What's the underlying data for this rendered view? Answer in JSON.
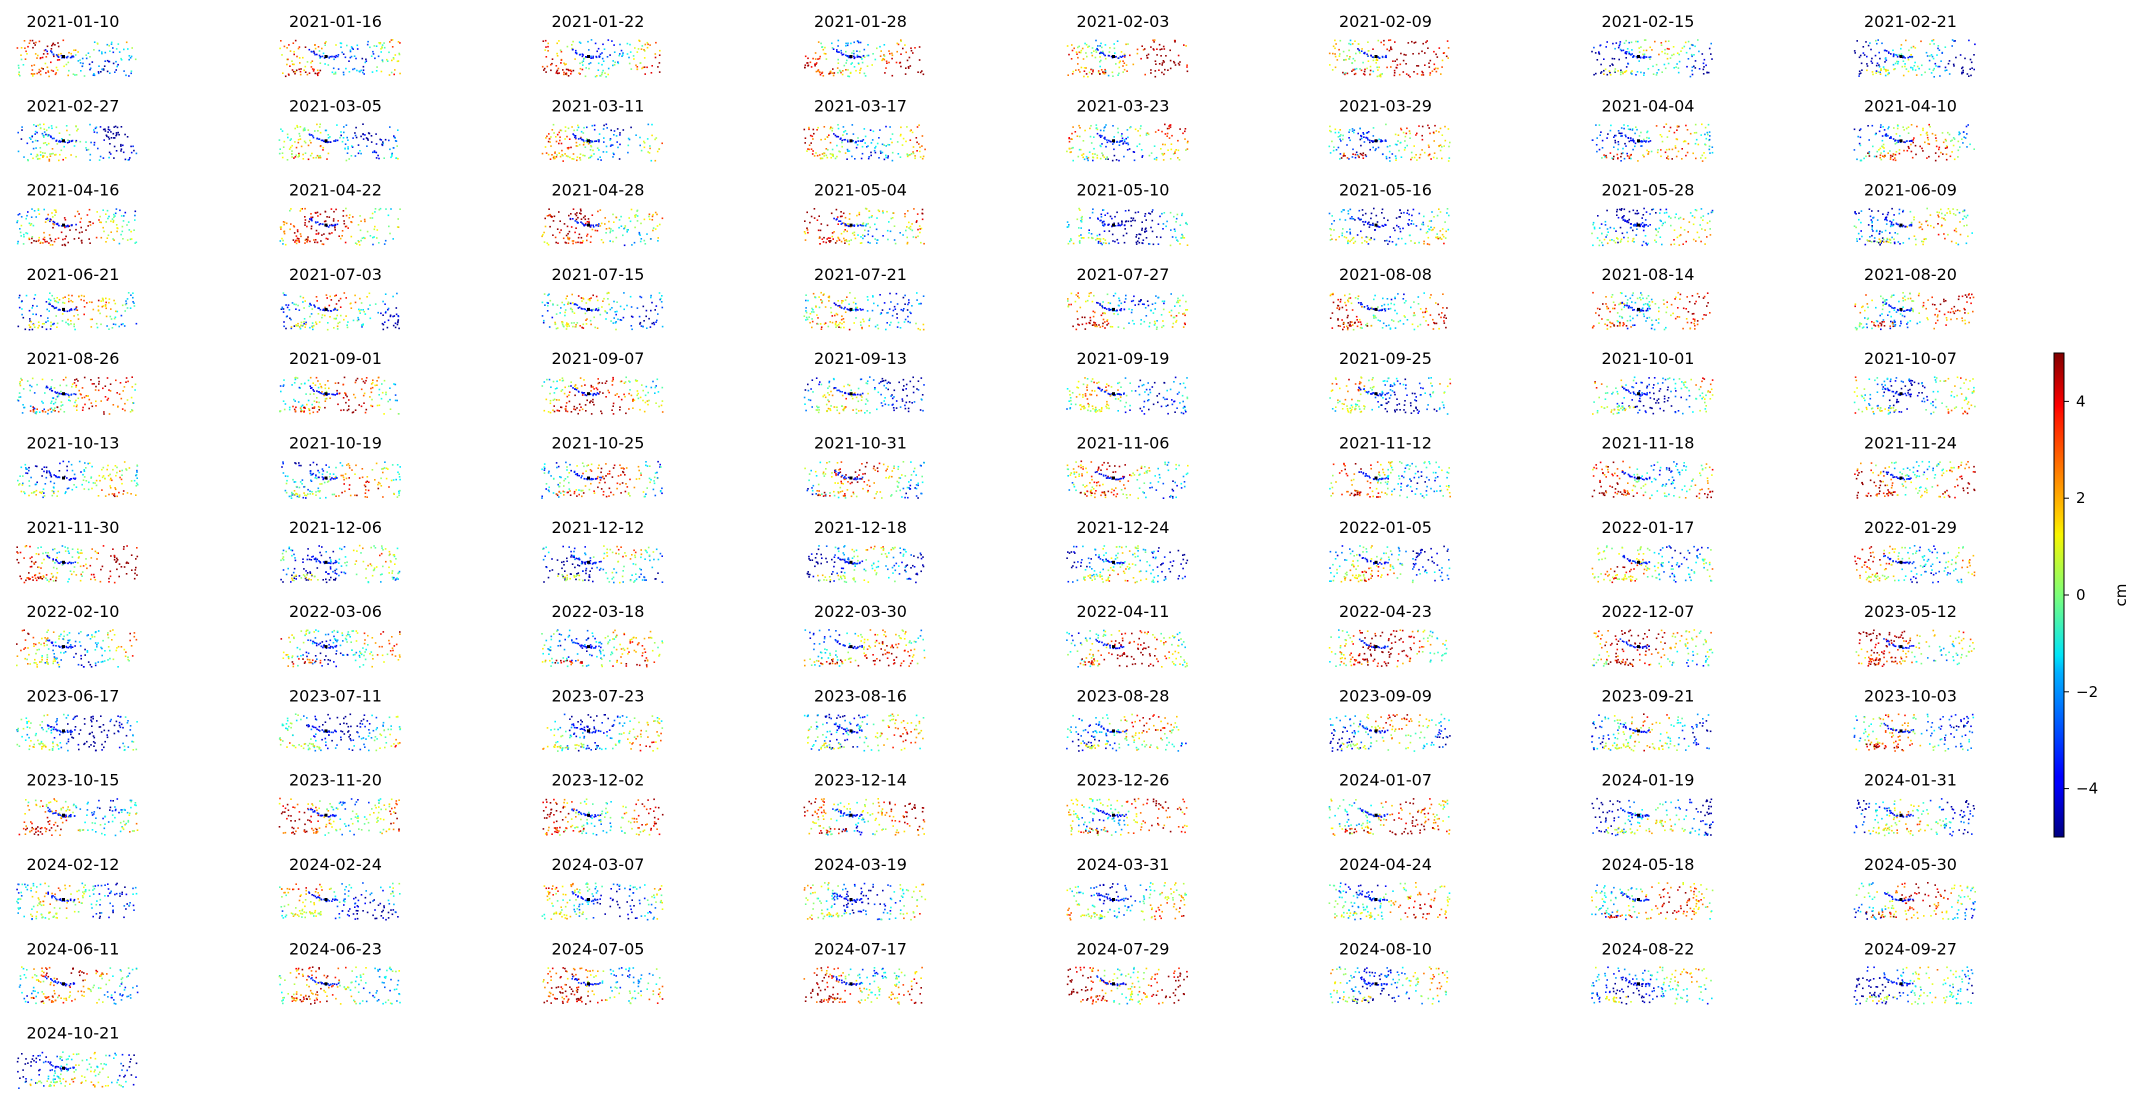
{
  "chart_data": {
    "type": "scatter",
    "panel_kind": "small-multiples-map",
    "columns": 8,
    "panel_titles": [
      "2021-01-10",
      "2021-01-16",
      "2021-01-22",
      "2021-01-28",
      "2021-02-03",
      "2021-02-09",
      "2021-02-15",
      "2021-02-21",
      "2021-02-27",
      "2021-03-05",
      "2021-03-11",
      "2021-03-17",
      "2021-03-23",
      "2021-03-29",
      "2021-04-04",
      "2021-04-10",
      "2021-04-16",
      "2021-04-22",
      "2021-04-28",
      "2021-05-04",
      "2021-05-10",
      "2021-05-16",
      "2021-05-28",
      "2021-06-09",
      "2021-06-21",
      "2021-07-03",
      "2021-07-15",
      "2021-07-21",
      "2021-07-27",
      "2021-08-08",
      "2021-08-14",
      "2021-08-20",
      "2021-08-26",
      "2021-09-01",
      "2021-09-07",
      "2021-09-13",
      "2021-09-19",
      "2021-09-25",
      "2021-10-01",
      "2021-10-07",
      "2021-10-13",
      "2021-10-19",
      "2021-10-25",
      "2021-10-31",
      "2021-11-06",
      "2021-11-12",
      "2021-11-18",
      "2021-11-24",
      "2021-11-30",
      "2021-12-06",
      "2021-12-12",
      "2021-12-18",
      "2021-12-24",
      "2022-01-05",
      "2022-01-17",
      "2022-01-29",
      "2022-02-10",
      "2022-03-06",
      "2022-03-18",
      "2022-03-30",
      "2022-04-11",
      "2022-04-23",
      "2022-12-07",
      "2023-05-12",
      "2023-06-17",
      "2023-07-11",
      "2023-07-23",
      "2023-08-16",
      "2023-08-28",
      "2023-09-09",
      "2023-09-21",
      "2023-10-03",
      "2023-10-15",
      "2023-11-20",
      "2023-12-02",
      "2023-12-14",
      "2023-12-26",
      "2024-01-07",
      "2024-01-19",
      "2024-01-31",
      "2024-02-12",
      "2024-02-24",
      "2024-03-07",
      "2024-03-19",
      "2024-03-31",
      "2024-04-24",
      "2024-05-18",
      "2024-05-30",
      "2024-06-11",
      "2024-06-23",
      "2024-07-05",
      "2024-07-17",
      "2024-07-29",
      "2024-08-10",
      "2024-08-22",
      "2024-09-27",
      "2024-10-21"
    ],
    "axes_visible": false,
    "colormap": "jet",
    "colorbar": {
      "label": "cm",
      "min": -5,
      "max": 5,
      "ticks": [
        -4,
        -2,
        0,
        2,
        4
      ],
      "tick_labels": [
        "−4",
        "−2",
        "0",
        "2",
        "4"
      ],
      "placement": "right"
    }
  }
}
